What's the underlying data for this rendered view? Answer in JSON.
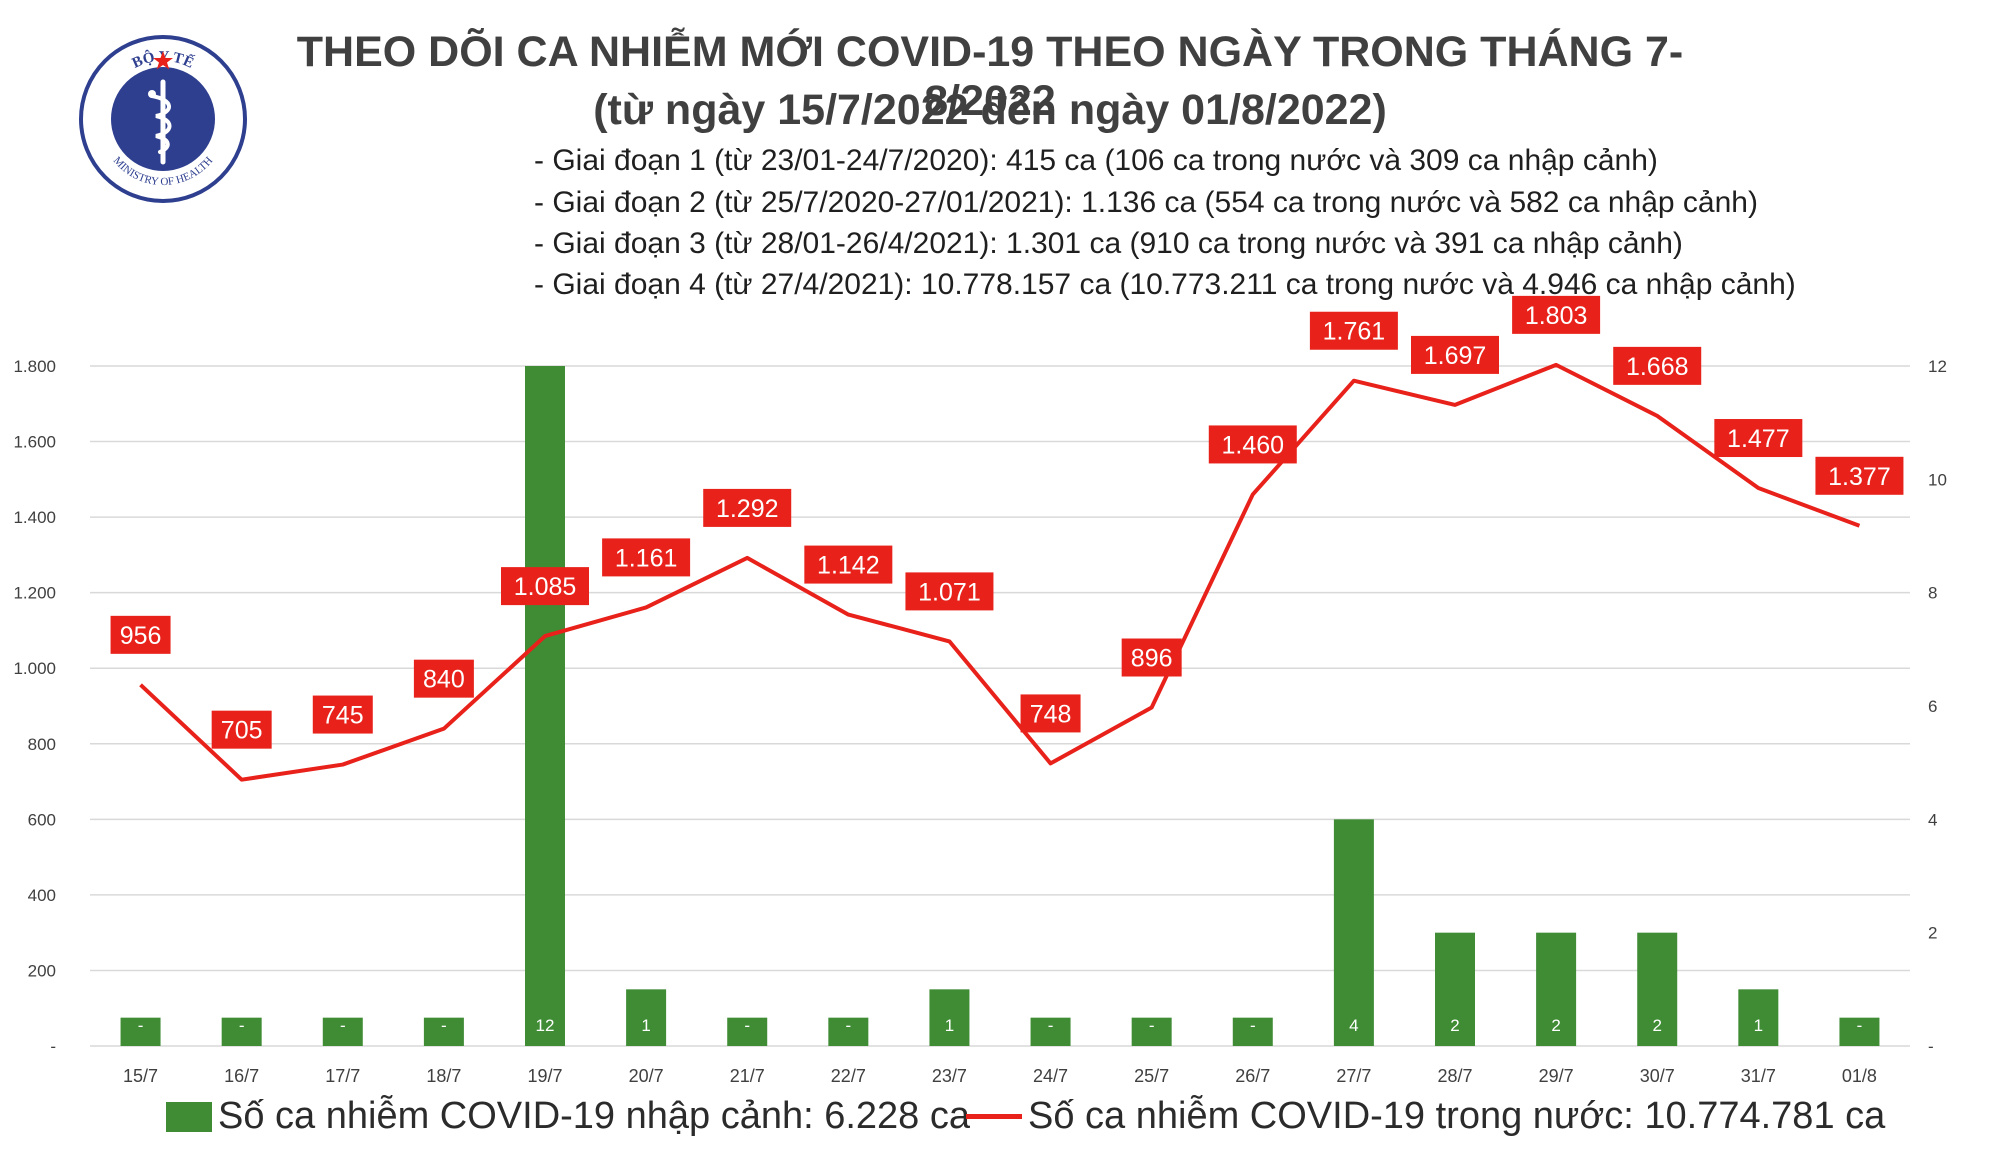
{
  "header": {
    "title_line1": "THEO DÕI CA NHIỄM MỚI COVID-19 THEO NGÀY TRONG THÁNG 7-8/2022",
    "title_line2": "(từ ngày 15/7/2022 đến ngày 01/8/2022)",
    "phases": [
      "- Giai đoạn 1 (từ 23/01-24/7/2020): 415 ca (106 ca trong nước và 309 ca nhập cảnh)",
      "- Giai đoạn 2 (từ 25/7/2020-27/01/2021): 1.136 ca (554 ca trong nước và 582 ca nhập cảnh)",
      "- Giai đoạn 3 (từ 28/01-26/4/2021): 1.301 ca (910 ca trong nước và 391 ca nhập cảnh)",
      "- Giai đoạn 4 (từ 27/4/2021): 10.778.157 ca (10.773.211 ca trong nước và 4.946 ca nhập cảnh)"
    ]
  },
  "logo": {
    "top_text": "BỘ Y TẾ",
    "bottom_text": "MINISTRY OF HEALTH"
  },
  "legend": {
    "bar_label": "Số ca nhiễm COVID-19 nhập cảnh: 6.228 ca",
    "line_label": "Số ca nhiễm COVID-19 trong nước: 10.774.781 ca"
  },
  "colors": {
    "bar": "#3f8c35",
    "line": "#e8221b",
    "label_bg": "#e8221b",
    "grid": "#d9d9d9",
    "logo_blue": "#2e3f8f"
  },
  "chart_data": {
    "type": "bar",
    "categories": [
      "15/7",
      "16/7",
      "17/7",
      "18/7",
      "19/7",
      "20/7",
      "21/7",
      "22/7",
      "23/7",
      "24/7",
      "25/7",
      "26/7",
      "27/7",
      "28/7",
      "29/7",
      "30/7",
      "31/7",
      "01/8"
    ],
    "series": [
      {
        "name": "Số ca nhiễm COVID-19 nhập cảnh",
        "type": "bar",
        "axis": "right",
        "values": [
          0,
          0,
          0,
          0,
          12,
          1,
          0,
          0,
          1,
          0,
          0,
          0,
          4,
          2,
          2,
          2,
          1,
          0
        ],
        "labels": [
          "-",
          "-",
          "-",
          "-",
          "12",
          "1",
          "-",
          "-",
          "1",
          "-",
          "-",
          "-",
          "4",
          "2",
          "2",
          "2",
          "1",
          "-"
        ]
      },
      {
        "name": "Số ca nhiễm COVID-19 trong nước",
        "type": "line",
        "axis": "left",
        "values": [
          956,
          705,
          745,
          840,
          1085,
          1161,
          1292,
          1142,
          1071,
          748,
          896,
          1460,
          1761,
          1697,
          1803,
          1668,
          1477,
          1377
        ],
        "labels": [
          "956",
          "705",
          "745",
          "840",
          "1.085",
          "1.161",
          "1.292",
          "1.142",
          "1.071",
          "748",
          "896",
          "1.460",
          "1.761",
          "1.697",
          "1.803",
          "1.668",
          "1.477",
          "1.377"
        ]
      }
    ],
    "y_left": {
      "range": [
        0,
        1800
      ],
      "ticks": [
        0,
        200,
        400,
        600,
        800,
        1000,
        1200,
        1400,
        1600,
        1800
      ],
      "tick_labels": [
        "-",
        "200",
        "400",
        "600",
        "800",
        "1.000",
        "1.200",
        "1.400",
        "1.600",
        "1.800"
      ]
    },
    "y_right": {
      "range": [
        0,
        12
      ],
      "ticks": [
        0,
        2,
        4,
        6,
        8,
        10,
        12
      ],
      "tick_labels": [
        "-",
        "2",
        "4",
        "6",
        "8",
        "10",
        "12"
      ]
    },
    "grid": true,
    "legend_position": "bottom"
  }
}
